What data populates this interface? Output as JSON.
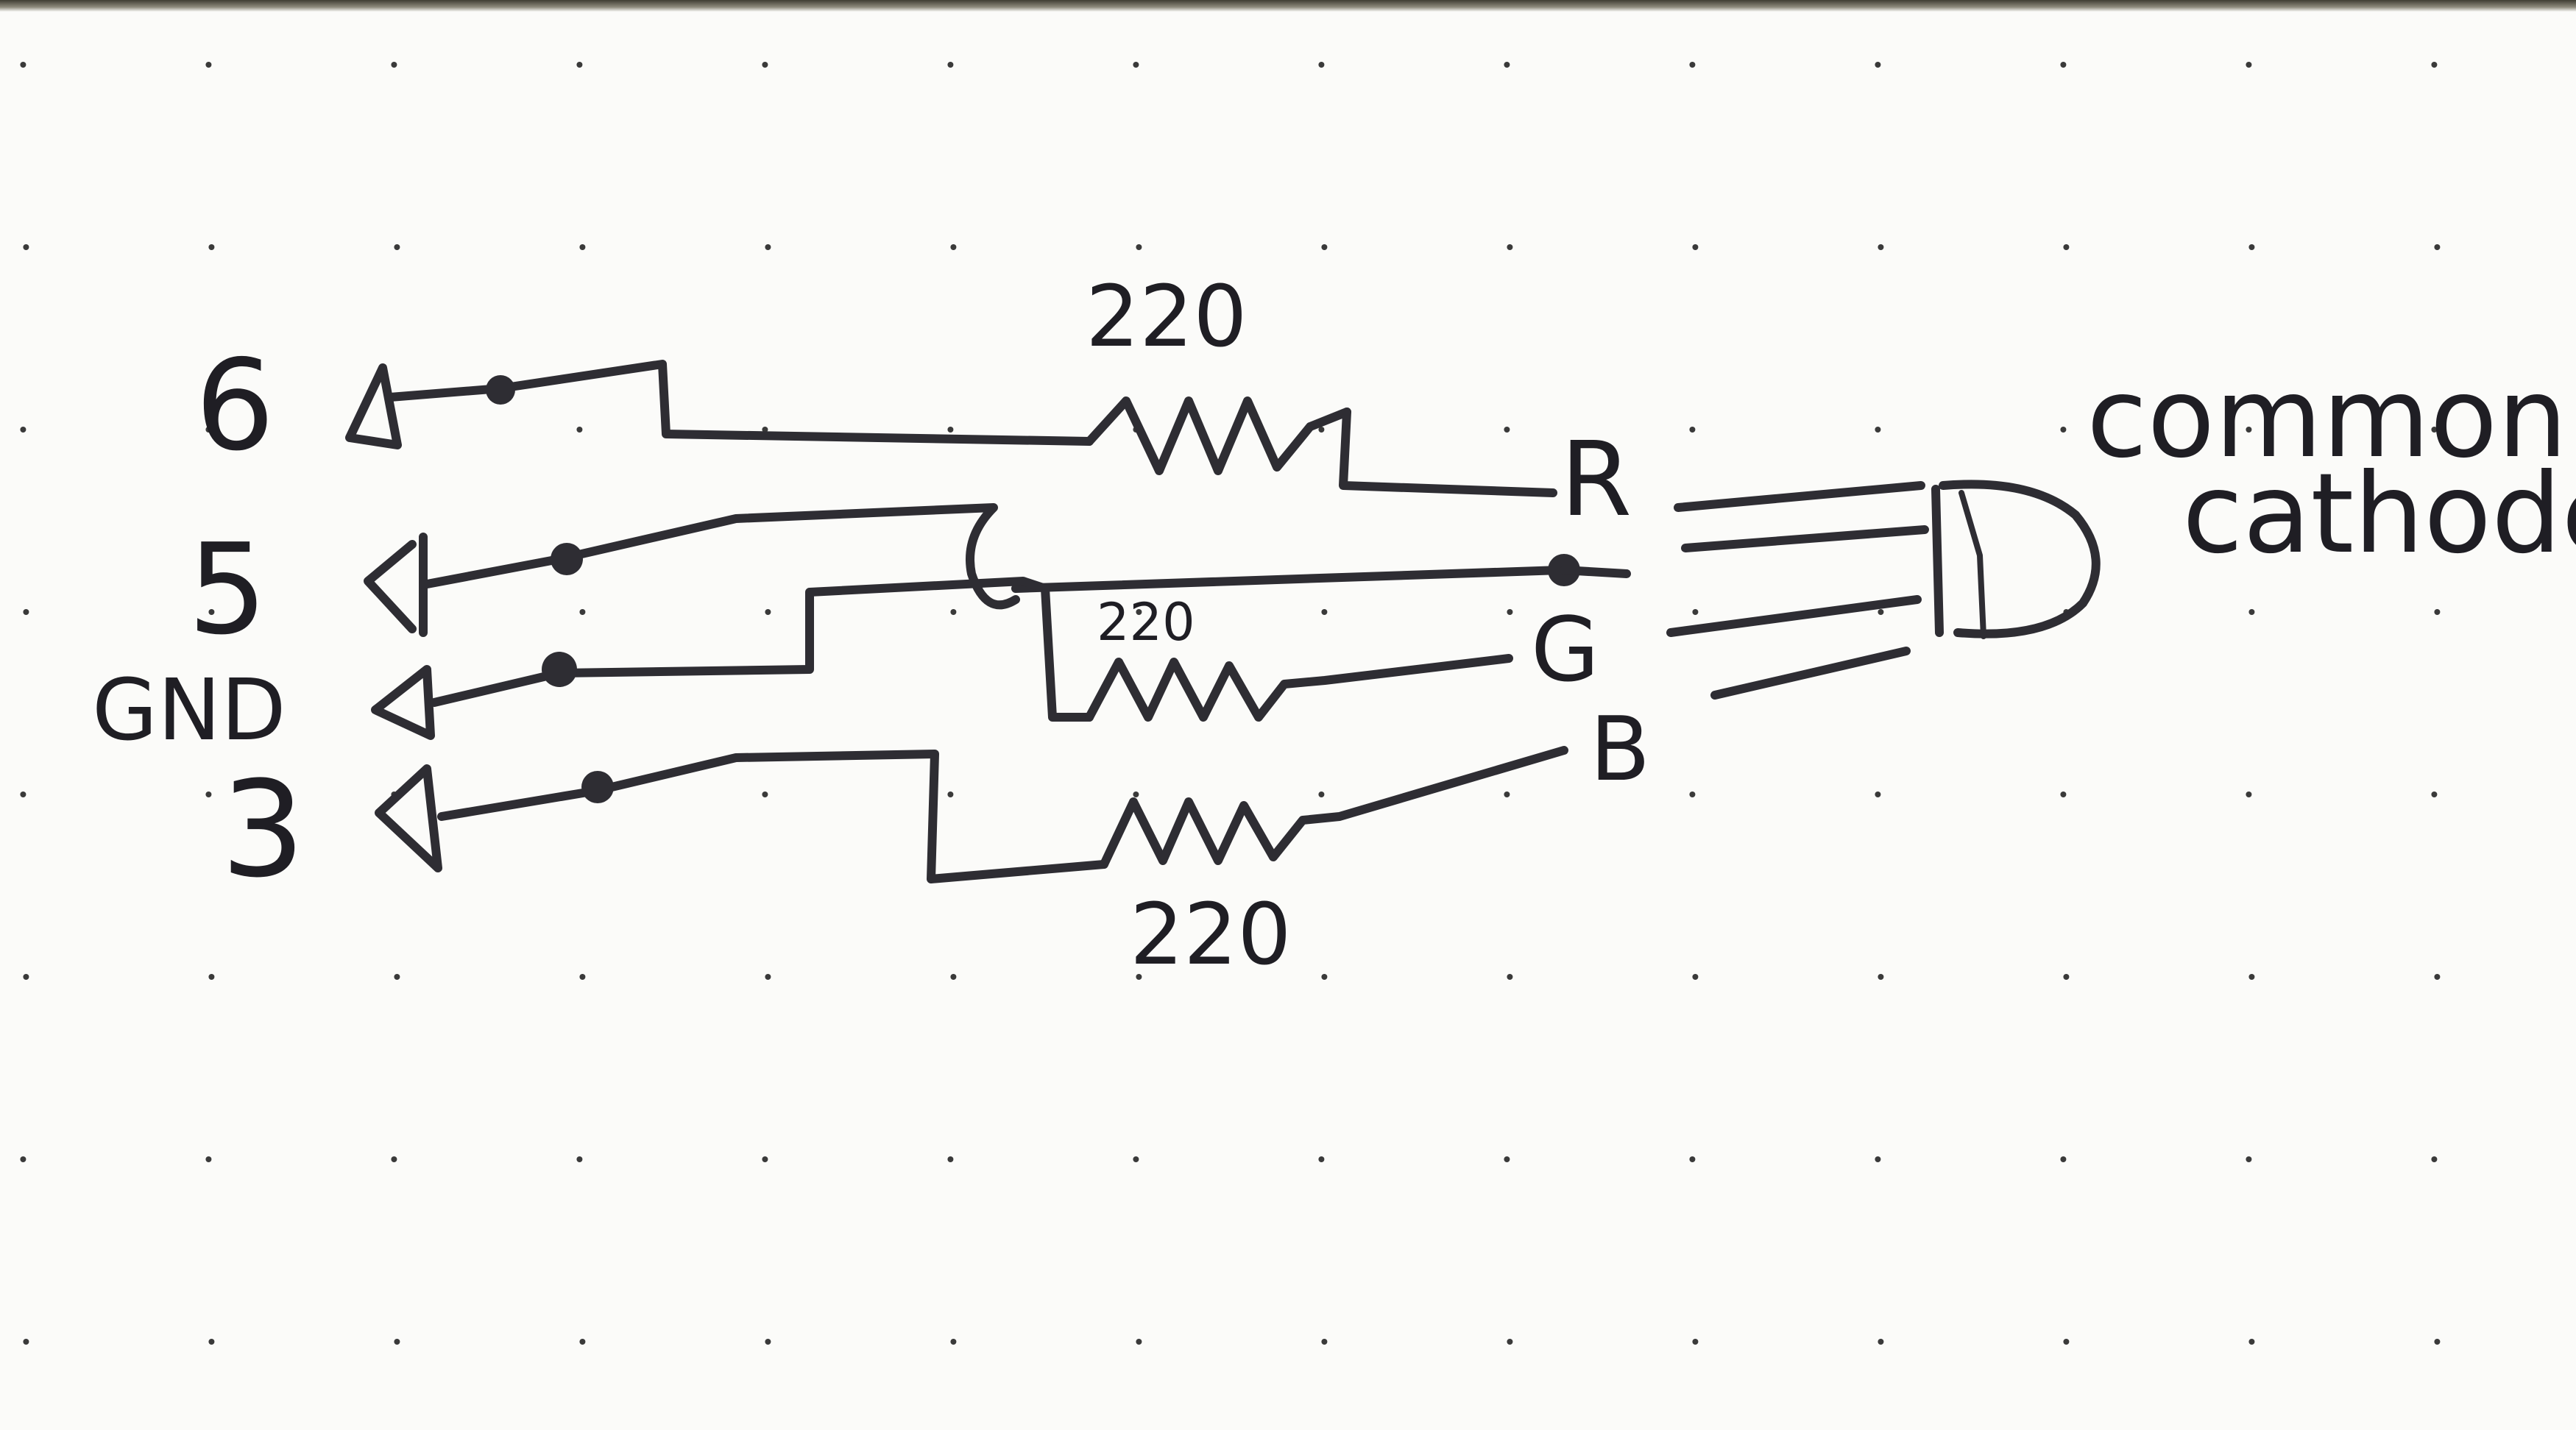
{
  "diagram": {
    "pins": [
      {
        "id": "pin6",
        "label": "6"
      },
      {
        "id": "pin5",
        "label": "5"
      },
      {
        "id": "pinGND",
        "label": "GND"
      },
      {
        "id": "pin3",
        "label": "3"
      }
    ],
    "resistors": [
      {
        "id": "r1",
        "label": "220"
      },
      {
        "id": "r2",
        "label": "220"
      },
      {
        "id": "r3",
        "label": "220"
      }
    ],
    "led": {
      "legs": [
        {
          "id": "legR",
          "label": "R"
        },
        {
          "id": "legG",
          "label": "G"
        },
        {
          "id": "legB",
          "label": "B"
        }
      ],
      "note_line1": "common",
      "note_line2": "cathode"
    }
  },
  "colors": {
    "ink": "#2e2d33",
    "paper": "#fbfbf9",
    "dots": "#3a3a3a"
  }
}
